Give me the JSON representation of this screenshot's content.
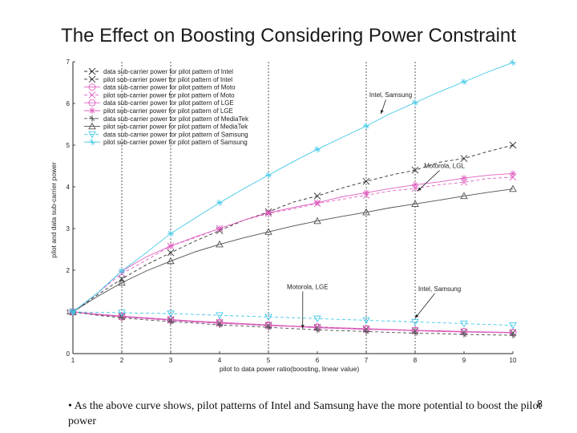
{
  "slide": {
    "title": "The Effect on Boosting Considering Power Constraint",
    "bullet_marker": "•",
    "bullet_text": "As the above curve shows, pilot patterns of Intel and Samsung have the more potential to boost the pilot power",
    "page_number": "8"
  },
  "chart_data": {
    "type": "line",
    "xlabel": "pilot to data power ratio(boosting, linear value)",
    "ylabel": "pilot and data sub-carrier power",
    "xlim": [
      1,
      10
    ],
    "ylim": [
      0,
      7
    ],
    "x_ticks": [
      1,
      2,
      3,
      4,
      5,
      6,
      7,
      8,
      9,
      10
    ],
    "y_ticks": [
      0,
      1,
      2,
      3,
      4,
      5,
      6,
      7
    ],
    "vertical_gridlines": [
      2,
      3,
      5,
      7,
      8
    ],
    "legend_position": "top-left",
    "colors": {
      "pink": "#e060c0",
      "cyan": "#40c8e8",
      "gray": "#505050",
      "dark": "#303030"
    },
    "annotations": [
      {
        "text": "Intel, Samsung",
        "x": 7.5,
        "y": 6.15,
        "arrow_to": [
          7.3,
          5.75
        ]
      },
      {
        "text": "Motorola, LGL",
        "x": 8.6,
        "y": 4.45,
        "arrow_to": [
          8.05,
          3.9
        ]
      },
      {
        "text": "Motorola, LGE",
        "x": 5.8,
        "y": 1.55,
        "arrow_to": [
          5.7,
          0.6
        ]
      },
      {
        "text": "Intel, Samsung",
        "x": 8.5,
        "y": 1.5,
        "arrow_to": [
          8.0,
          0.85
        ]
      }
    ],
    "series": [
      {
        "name": "data sub-carrier power for pilot pattern of Intel",
        "marker": "x",
        "color": "#303030",
        "dash": "4,3",
        "x": [
          1,
          1.5,
          2,
          2.5,
          3,
          3.5,
          4,
          4.5,
          5,
          5.5,
          6,
          6.5,
          7,
          7.5,
          8,
          8.5,
          9,
          9.5,
          10
        ],
        "y": [
          1,
          0.94,
          0.89,
          0.85,
          0.81,
          0.77,
          0.74,
          0.71,
          0.68,
          0.66,
          0.63,
          0.61,
          0.59,
          0.57,
          0.55,
          0.54,
          0.52,
          0.51,
          0.5
        ]
      },
      {
        "name": "pilot sub-carrier power for pilot pattern of Intel",
        "marker": "x",
        "color": "#303030",
        "dash": "4,3",
        "x": [
          1,
          1.5,
          2,
          2.5,
          3,
          3.5,
          4,
          4.5,
          5,
          5.5,
          6,
          6.5,
          7,
          7.5,
          8,
          8.5,
          9,
          9.5,
          10
        ],
        "y": [
          1,
          1.41,
          1.79,
          2.13,
          2.42,
          2.7,
          2.95,
          3.2,
          3.4,
          3.63,
          3.78,
          3.97,
          4.13,
          4.28,
          4.4,
          4.59,
          4.68,
          4.85,
          5.0
        ]
      },
      {
        "name": "data sub-carrier power for pilot pattern of Moto",
        "marker": "o",
        "color": "#e060c0",
        "dash": "",
        "x": [
          1,
          1.5,
          2,
          2.5,
          3,
          3.5,
          4,
          4.5,
          5,
          5.5,
          6,
          6.5,
          7,
          7.5,
          8,
          8.5,
          9,
          9.5,
          10
        ],
        "y": [
          1,
          0.95,
          0.9,
          0.86,
          0.82,
          0.78,
          0.75,
          0.72,
          0.69,
          0.66,
          0.64,
          0.62,
          0.6,
          0.58,
          0.56,
          0.55,
          0.53,
          0.52,
          0.51
        ]
      },
      {
        "name": "pilot sub-carrier power for pilot pattern of Moto",
        "marker": "x",
        "color": "#e060c0",
        "dash": "4,3",
        "x": [
          1,
          1.5,
          2,
          2.5,
          3,
          3.5,
          4,
          4.5,
          5,
          5.5,
          6,
          6.5,
          7,
          7.5,
          8,
          8.5,
          9,
          9.5,
          10
        ],
        "y": [
          1,
          1.45,
          1.92,
          2.24,
          2.58,
          2.78,
          3.0,
          3.2,
          3.36,
          3.47,
          3.6,
          3.7,
          3.8,
          3.9,
          3.96,
          4.05,
          4.11,
          4.2,
          4.23
        ]
      },
      {
        "name": "data sub-carrier power for pilot pattern of LGE",
        "marker": "o",
        "color": "#e060c0",
        "dash": "",
        "x": [
          1,
          1.5,
          2,
          2.5,
          3,
          3.5,
          4,
          4.5,
          5,
          5.5,
          6,
          6.5,
          7,
          7.5,
          8,
          8.5,
          9,
          9.5,
          10
        ],
        "y": [
          1,
          0.93,
          0.88,
          0.84,
          0.8,
          0.76,
          0.73,
          0.7,
          0.67,
          0.65,
          0.62,
          0.6,
          0.58,
          0.57,
          0.55,
          0.53,
          0.52,
          0.51,
          0.5
        ]
      },
      {
        "name": "pilot sub-carrier power for pilot pattern of LGE",
        "marker": "*",
        "color": "#e060c0",
        "dash": "",
        "x": [
          1,
          1.5,
          2,
          2.5,
          3,
          3.5,
          4,
          4.5,
          5,
          5.5,
          6,
          6.5,
          7,
          7.5,
          8,
          8.5,
          9,
          9.5,
          10
        ],
        "y": [
          1,
          1.45,
          1.98,
          2.32,
          2.58,
          2.8,
          3.0,
          3.2,
          3.38,
          3.5,
          3.62,
          3.76,
          3.86,
          3.96,
          4.05,
          4.12,
          4.21,
          4.28,
          4.32
        ]
      },
      {
        "name": "data sub-carrier power for pilot pattern of MediaTek",
        "marker": "star",
        "color": "#505050",
        "dash": "4,3",
        "x": [
          1,
          1.5,
          2,
          2.5,
          3,
          3.5,
          4,
          4.5,
          5,
          5.5,
          6,
          6.5,
          7,
          7.5,
          8,
          8.5,
          9,
          9.5,
          10
        ],
        "y": [
          1,
          0.92,
          0.86,
          0.81,
          0.77,
          0.73,
          0.69,
          0.66,
          0.63,
          0.6,
          0.57,
          0.55,
          0.53,
          0.51,
          0.49,
          0.48,
          0.46,
          0.45,
          0.44
        ]
      },
      {
        "name": "pilot sub-carrier power for pilot pattern of MediaTek",
        "marker": "triangle",
        "color": "#505050",
        "dash": "",
        "x": [
          1,
          1.5,
          2,
          2.5,
          3,
          3.5,
          4,
          4.5,
          5,
          5.5,
          6,
          6.5,
          7,
          7.5,
          8,
          8.5,
          9,
          9.5,
          10
        ],
        "y": [
          1,
          1.37,
          1.7,
          1.98,
          2.22,
          2.44,
          2.62,
          2.78,
          2.92,
          3.06,
          3.18,
          3.29,
          3.39,
          3.5,
          3.59,
          3.68,
          3.78,
          3.87,
          3.95
        ]
      },
      {
        "name": "data sub-carrier power for pilot pattern of Samsung",
        "marker": "triangle-down",
        "color": "#40c8e8",
        "dash": "4,3",
        "x": [
          1,
          1.5,
          2,
          2.5,
          3,
          3.5,
          4,
          4.5,
          5,
          5.5,
          6,
          6.5,
          7,
          7.5,
          8,
          8.5,
          9,
          9.5,
          10
        ],
        "y": [
          1,
          0.99,
          0.98,
          0.97,
          0.96,
          0.94,
          0.92,
          0.9,
          0.88,
          0.86,
          0.84,
          0.82,
          0.8,
          0.78,
          0.76,
          0.74,
          0.72,
          0.7,
          0.68
        ]
      },
      {
        "name": "pilot sub-carrier power for pilot pattern of Samsung",
        "marker": "star",
        "color": "#40c8e8",
        "dash": "",
        "x": [
          1,
          1.5,
          2,
          2.5,
          3,
          3.5,
          4,
          4.5,
          5,
          5.5,
          6,
          6.5,
          7,
          7.5,
          8,
          8.5,
          9,
          9.5,
          10
        ],
        "y": [
          1,
          1.45,
          1.98,
          2.42,
          2.88,
          3.25,
          3.62,
          3.96,
          4.28,
          4.6,
          4.9,
          5.18,
          5.46,
          5.76,
          6.02,
          6.28,
          6.52,
          6.76,
          6.98
        ]
      }
    ]
  }
}
